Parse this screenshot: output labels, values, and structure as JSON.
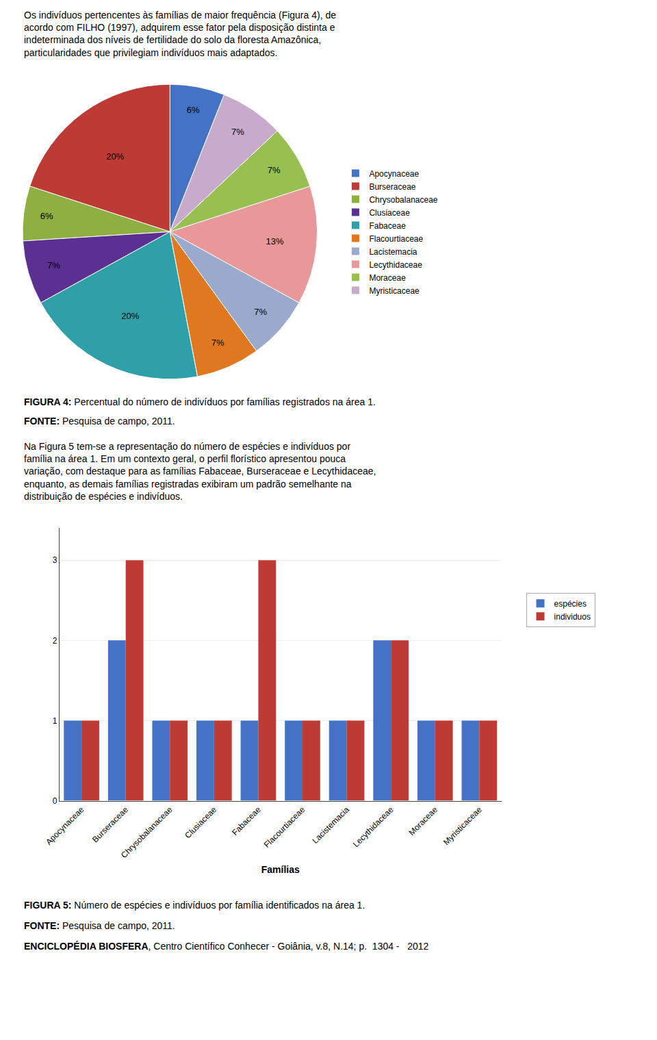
{
  "chart_data": [
    {
      "type": "pie",
      "title": "FIGURA 4: Percentual do número de indivíduos por famílias registrados na área 1.",
      "annotations": [
        "Os indivíduos pertencentes às famílias de maior frequência (Figura 4), de\nacordo com FILHO (1997), adquirem esse fator pela disposição distinta e\nindeterminada dos níveis de fertilidade do solo da floresta Amazônica,\nparticularidades que privilegiam indivíduos mais adaptados.",
        "FONTE: Pesquisa de campo, 2011."
      ],
      "categories": [
        "Apocynaceae",
        "Burseraceae",
        "Chrysobalanaceae",
        "Clusiaceae",
        "Fabaceae",
        "Flacourtiaceae",
        "Lacistemacia",
        "Lecythidaceae",
        "Moraceae",
        "Myristicaceae"
      ],
      "values": [
        6,
        20,
        6,
        7,
        20,
        7,
        7,
        13,
        7,
        7
      ],
      "value_labels": [
        "6%",
        "20%",
        "6%",
        "7%",
        "20%",
        "7%",
        "7%",
        "13%",
        "7%",
        "7%"
      ],
      "colors": [
        "#4472C4",
        "#BE3A34",
        "#8DB040",
        "#5B3092",
        "#2FA0AA",
        "#E07820",
        "#99AACC",
        "#E89898",
        "#98C050",
        "#C8AACC"
      ],
      "data_labels": true,
      "legend": "right"
    },
    {
      "type": "bar",
      "title": "FIGURA 5: Número de espécies e indivíduos por família identificados na área 1.",
      "annotations": [
        "Na Figura 5 tem-se a representação do número de espécies e indivíduos por\nfamília na área 1. Em um contexto geral, o perfil florístico apresentou pouca\nvariação, com destaque para as famílias Fabaceae, Burseraceae e Lecythidaceae,\nenquanto, as demais famílias registradas exibiram um padrão semelhante na\ndistribuição de espécies e indivíduos.",
        "FONTE: Pesquisa de campo, 2011.",
        "ENCICLOPÉDIA BIOSFERA, Centro Científico Conhecer - Goiânia, v.8, N.14; p.  1304 -   2012"
      ],
      "categories": [
        "Apocynaceae",
        "Burseraceae",
        "Chrysobalanaceae",
        "Clusiaceae",
        "Fabaceae",
        "Flacourtiaceae",
        "Lacistemacia",
        "Lecythidaceae",
        "Moraceae",
        "Myristicaceae"
      ],
      "series": [
        {
          "name": "espécies",
          "color": "#4472C4",
          "values": [
            1,
            2,
            1,
            1,
            1,
            1,
            1,
            2,
            1,
            1
          ]
        },
        {
          "name": "individuos",
          "color": "#BE3A34",
          "values": [
            1,
            3,
            1,
            1,
            3,
            1,
            1,
            2,
            1,
            1
          ]
        }
      ],
      "xlabel": "Famílias",
      "ylim": [
        0,
        3.4
      ],
      "yticks": [
        0,
        1,
        2,
        3
      ],
      "grid": true,
      "legend": "right"
    }
  ]
}
